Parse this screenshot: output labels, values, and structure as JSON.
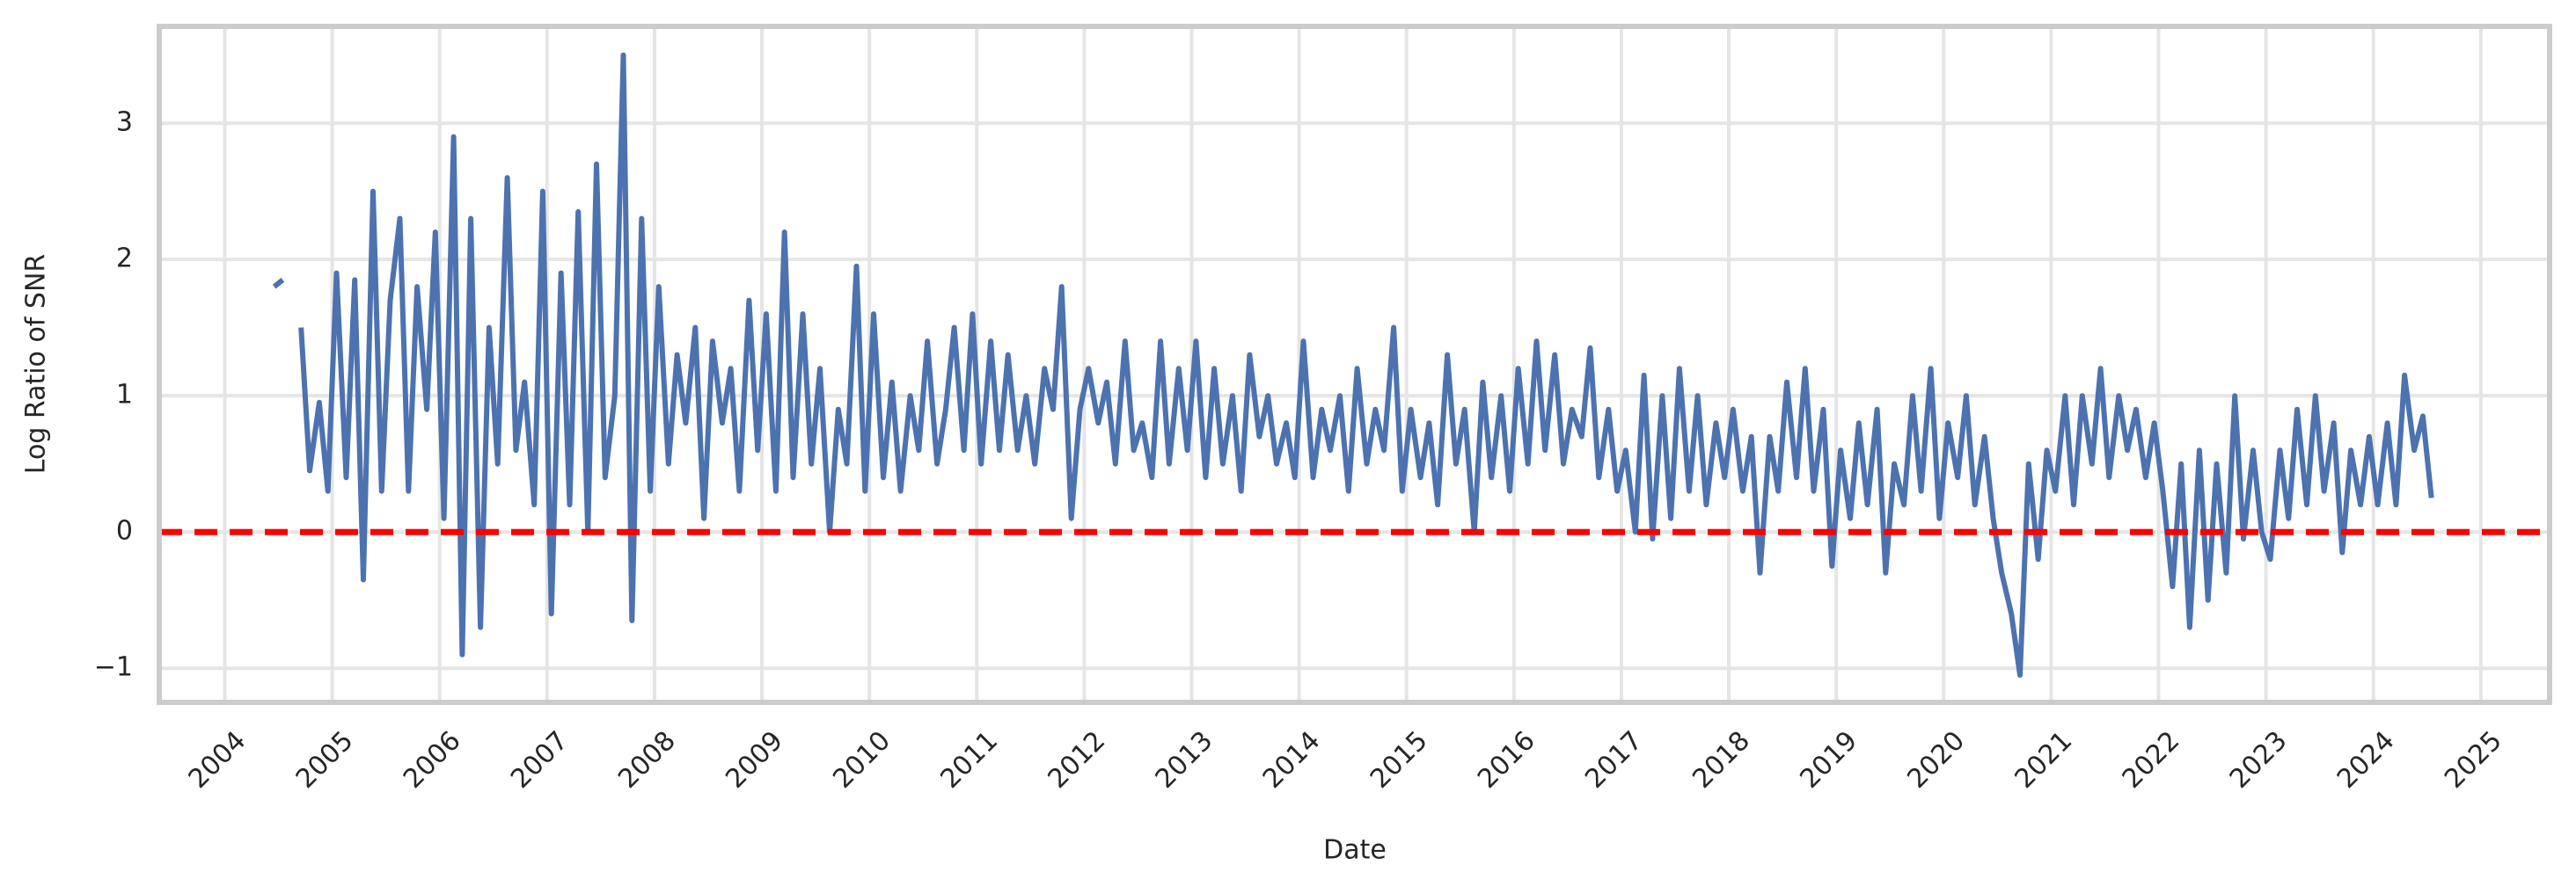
{
  "chart_data": {
    "type": "line",
    "x_label": "Date",
    "y_label": "Log Ratio of SNR",
    "color": "#4c72b0",
    "grid": true,
    "xlim": [
      2003.39,
      2025.64
    ],
    "ylim": [
      -1.25,
      3.71
    ],
    "xticks": [
      2004,
      2005,
      2006,
      2007,
      2008,
      2009,
      2010,
      2011,
      2012,
      2013,
      2014,
      2015,
      2016,
      2017,
      2018,
      2019,
      2020,
      2021,
      2022,
      2023,
      2024,
      2025
    ],
    "yticks": [
      {
        "value": -1,
        "label": "−1"
      },
      0,
      1,
      2,
      3
    ],
    "reference_line": {
      "value": 0,
      "color": "#ff0000",
      "style": "dashed"
    },
    "x": [
      2004.46,
      2004.54,
      2004.63,
      2004.71,
      2004.79,
      2004.88,
      2004.96,
      2005.04,
      2005.13,
      2005.21,
      2005.29,
      2005.38,
      2005.46,
      2005.54,
      2005.63,
      2005.71,
      2005.79,
      2005.88,
      2005.96,
      2006.04,
      2006.13,
      2006.21,
      2006.29,
      2006.38,
      2006.46,
      2006.54,
      2006.63,
      2006.71,
      2006.79,
      2006.88,
      2006.96,
      2007.04,
      2007.13,
      2007.21,
      2007.29,
      2007.38,
      2007.46,
      2007.54,
      2007.63,
      2007.71,
      2007.79,
      2007.88,
      2007.96,
      2008.04,
      2008.13,
      2008.21,
      2008.29,
      2008.38,
      2008.46,
      2008.54,
      2008.63,
      2008.71,
      2008.79,
      2008.88,
      2008.96,
      2009.04,
      2009.13,
      2009.21,
      2009.29,
      2009.38,
      2009.46,
      2009.54,
      2009.63,
      2009.71,
      2009.79,
      2009.88,
      2009.96,
      2010.04,
      2010.13,
      2010.21,
      2010.29,
      2010.38,
      2010.46,
      2010.54,
      2010.63,
      2010.71,
      2010.79,
      2010.88,
      2010.96,
      2011.04,
      2011.13,
      2011.21,
      2011.29,
      2011.38,
      2011.46,
      2011.54,
      2011.63,
      2011.71,
      2011.79,
      2011.88,
      2011.96,
      2012.04,
      2012.13,
      2012.21,
      2012.29,
      2012.38,
      2012.46,
      2012.54,
      2012.63,
      2012.71,
      2012.79,
      2012.88,
      2012.96,
      2013.04,
      2013.13,
      2013.21,
      2013.29,
      2013.38,
      2013.46,
      2013.54,
      2013.63,
      2013.71,
      2013.79,
      2013.88,
      2013.96,
      2014.04,
      2014.13,
      2014.21,
      2014.29,
      2014.38,
      2014.46,
      2014.54,
      2014.63,
      2014.71,
      2014.79,
      2014.88,
      2014.96,
      2015.04,
      2015.13,
      2015.21,
      2015.29,
      2015.38,
      2015.46,
      2015.54,
      2015.63,
      2015.71,
      2015.79,
      2015.88,
      2015.96,
      2016.04,
      2016.13,
      2016.21,
      2016.29,
      2016.38,
      2016.46,
      2016.54,
      2016.63,
      2016.71,
      2016.79,
      2016.88,
      2016.96,
      2017.04,
      2017.13,
      2017.21,
      2017.29,
      2017.38,
      2017.46,
      2017.54,
      2017.63,
      2017.71,
      2017.79,
      2017.88,
      2017.96,
      2018.04,
      2018.13,
      2018.21,
      2018.29,
      2018.38,
      2018.46,
      2018.54,
      2018.63,
      2018.71,
      2018.79,
      2018.88,
      2018.96,
      2019.04,
      2019.13,
      2019.21,
      2019.29,
      2019.38,
      2019.46,
      2019.54,
      2019.63,
      2019.71,
      2019.79,
      2019.88,
      2019.96,
      2020.04,
      2020.13,
      2020.21,
      2020.29,
      2020.38,
      2020.46,
      2020.54,
      2020.63,
      2020.71,
      2020.79,
      2020.88,
      2020.96,
      2021.04,
      2021.13,
      2021.21,
      2021.29,
      2021.38,
      2021.46,
      2021.54,
      2021.63,
      2021.71,
      2021.79,
      2021.88,
      2021.96,
      2022.04,
      2022.13,
      2022.21,
      2022.29,
      2022.38,
      2022.46,
      2022.54,
      2022.63,
      2022.71,
      2022.79,
      2022.88,
      2022.96,
      2023.04,
      2023.13,
      2023.21,
      2023.29,
      2023.38,
      2023.46,
      2023.54,
      2023.63,
      2023.71,
      2023.79,
      2023.88,
      2023.96,
      2024.04,
      2024.13,
      2024.21,
      2024.29,
      2024.38,
      2024.46,
      2024.54
    ],
    "values": [
      1.8,
      1.85,
      null,
      1.5,
      0.45,
      0.95,
      0.3,
      1.9,
      0.4,
      1.85,
      -0.35,
      2.5,
      0.3,
      1.7,
      2.3,
      0.3,
      1.8,
      0.9,
      2.2,
      0.1,
      2.9,
      -0.9,
      2.3,
      -0.7,
      1.5,
      0.5,
      2.6,
      0.6,
      1.1,
      0.2,
      2.5,
      -0.6,
      1.9,
      0.2,
      2.35,
      0.0,
      2.7,
      0.4,
      1.0,
      3.5,
      -0.65,
      2.3,
      0.3,
      1.8,
      0.5,
      1.3,
      0.8,
      1.5,
      0.1,
      1.4,
      0.8,
      1.2,
      0.3,
      1.7,
      0.6,
      1.6,
      0.3,
      2.2,
      0.4,
      1.6,
      0.5,
      1.2,
      0.0,
      0.9,
      0.5,
      1.95,
      0.3,
      1.6,
      0.4,
      1.1,
      0.3,
      1.0,
      0.6,
      1.4,
      0.5,
      0.9,
      1.5,
      0.6,
      1.6,
      0.5,
      1.4,
      0.6,
      1.3,
      0.6,
      1.0,
      0.5,
      1.2,
      0.9,
      1.8,
      0.1,
      0.9,
      1.2,
      0.8,
      1.1,
      0.5,
      1.4,
      0.6,
      0.8,
      0.4,
      1.4,
      0.5,
      1.2,
      0.6,
      1.4,
      0.4,
      1.2,
      0.5,
      1.0,
      0.3,
      1.3,
      0.7,
      1.0,
      0.5,
      0.8,
      0.4,
      1.4,
      0.4,
      0.9,
      0.6,
      1.0,
      0.3,
      1.2,
      0.5,
      0.9,
      0.6,
      1.5,
      0.3,
      0.9,
      0.4,
      0.8,
      0.2,
      1.3,
      0.5,
      0.9,
      0.0,
      1.1,
      0.4,
      1.0,
      0.3,
      1.2,
      0.5,
      1.4,
      0.6,
      1.3,
      0.5,
      0.9,
      0.7,
      1.35,
      0.4,
      0.9,
      0.3,
      0.6,
      0.0,
      1.15,
      -0.05,
      1.0,
      0.1,
      1.2,
      0.3,
      1.0,
      0.2,
      0.8,
      0.4,
      0.9,
      0.3,
      0.7,
      -0.3,
      0.7,
      0.3,
      1.1,
      0.4,
      1.2,
      0.3,
      0.9,
      -0.25,
      0.6,
      0.1,
      0.8,
      0.2,
      0.9,
      -0.3,
      0.5,
      0.2,
      1.0,
      0.3,
      1.2,
      0.1,
      0.8,
      0.4,
      1.0,
      0.2,
      0.7,
      0.1,
      -0.3,
      -0.6,
      -1.05,
      0.5,
      -0.2,
      0.6,
      0.3,
      1.0,
      0.2,
      1.0,
      0.5,
      1.2,
      0.4,
      1.0,
      0.6,
      0.9,
      0.4,
      0.8,
      0.3,
      -0.4,
      0.5,
      -0.7,
      0.6,
      -0.5,
      0.5,
      -0.3,
      1.0,
      -0.05,
      0.6,
      0.0,
      -0.2,
      0.6,
      0.1,
      0.9,
      0.2,
      1.0,
      0.3,
      0.8,
      -0.15,
      0.6,
      0.2,
      0.7,
      0.2,
      0.8,
      0.2,
      1.15,
      0.6,
      0.85,
      0.25
    ]
  }
}
